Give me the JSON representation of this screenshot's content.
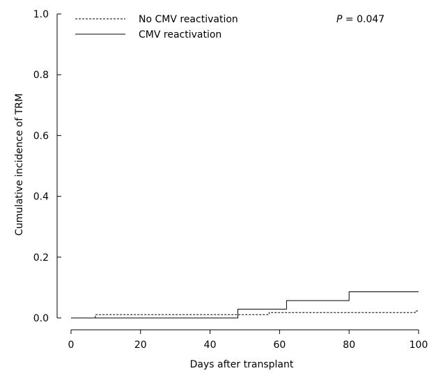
{
  "chart_data": {
    "type": "line",
    "title": "",
    "xlabel": "Days after transplant",
    "ylabel": "Cumulative incidence of TRM",
    "xlim": [
      0,
      100
    ],
    "ylim": [
      0,
      1.0
    ],
    "x_ticks": [
      "0",
      "20",
      "40",
      "60",
      "80",
      "100"
    ],
    "y_ticks": [
      "0.0",
      "0.2",
      "0.4",
      "0.6",
      "0.8",
      "1.0"
    ],
    "grid": false,
    "legend_position": "top-left",
    "annotation": {
      "p_symbol": "P",
      "p_rest": " = 0.047"
    },
    "series": [
      {
        "name": "No CMV reactivation",
        "style": "dashed",
        "color": "#000000",
        "points": [
          [
            0,
            0.0
          ],
          [
            7,
            0.0
          ],
          [
            7,
            0.011
          ],
          [
            57,
            0.011
          ],
          [
            57,
            0.018
          ],
          [
            99,
            0.018
          ],
          [
            99,
            0.023
          ],
          [
            100,
            0.023
          ]
        ]
      },
      {
        "name": "CMV reactivation",
        "style": "solid",
        "color": "#000000",
        "points": [
          [
            0,
            0.0
          ],
          [
            48,
            0.0
          ],
          [
            48,
            0.029
          ],
          [
            62,
            0.029
          ],
          [
            62,
            0.057
          ],
          [
            80,
            0.057
          ],
          [
            80,
            0.086
          ],
          [
            100,
            0.086
          ]
        ]
      }
    ]
  }
}
